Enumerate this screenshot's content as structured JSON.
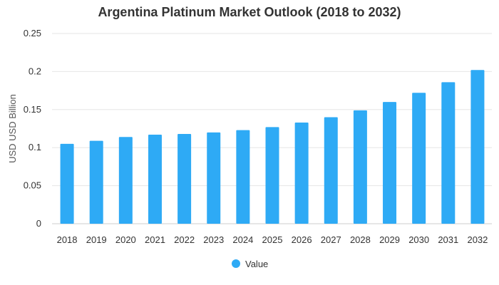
{
  "chart_data": {
    "type": "bar",
    "title": "Argentina Platinum Market Outlook (2018 to 2032)",
    "xlabel": "",
    "ylabel": "USD USD Billion",
    "categories": [
      "2018",
      "2019",
      "2020",
      "2021",
      "2022",
      "2023",
      "2024",
      "2025",
      "2026",
      "2027",
      "2028",
      "2029",
      "2030",
      "2031",
      "2032"
    ],
    "series": [
      {
        "name": "Value",
        "color": "#2eaaf5",
        "values": [
          0.105,
          0.109,
          0.114,
          0.117,
          0.118,
          0.12,
          0.123,
          0.127,
          0.133,
          0.14,
          0.149,
          0.16,
          0.172,
          0.186,
          0.202
        ]
      }
    ],
    "ylim": [
      0,
      0.25
    ],
    "yticks": [
      0,
      0.05,
      0.1,
      0.15,
      0.2,
      0.25
    ],
    "ytick_labels": [
      "0",
      "0.05",
      "0.1",
      "0.15",
      "0.2",
      "0.25"
    ],
    "grid": true,
    "legend_position": "bottom"
  }
}
